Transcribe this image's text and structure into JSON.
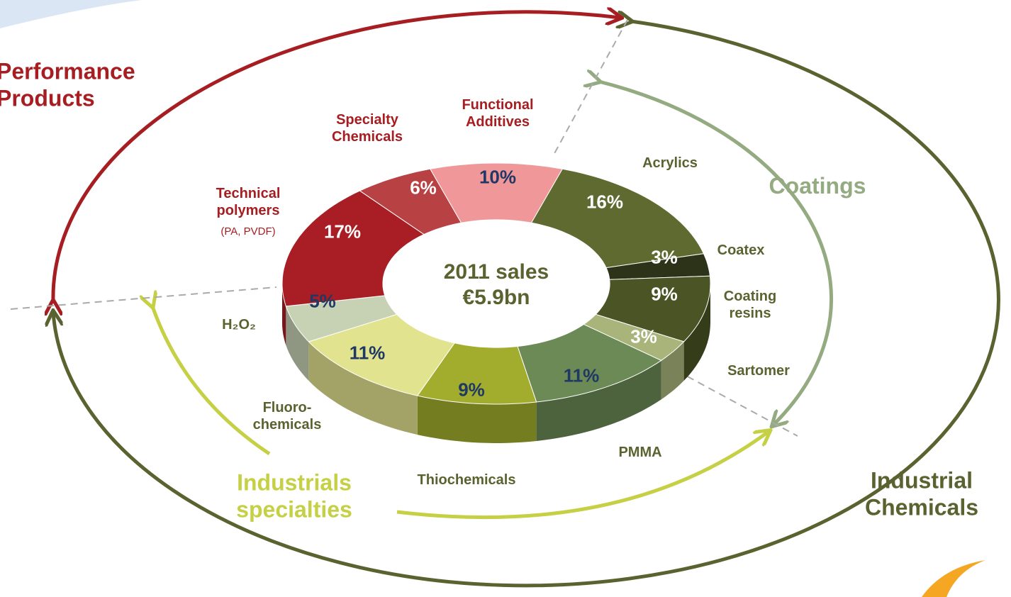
{
  "chart_data": {
    "type": "pie",
    "donut": true,
    "center_label": "2011 sales €5.9bn",
    "categories": [
      "Functional Additives",
      "Acrylics",
      "Coatex",
      "Coating resins",
      "Sartomer",
      "PMMA",
      "Thiochemicals",
      "Fluoro-chemicals",
      "H₂O₂",
      "Technical polymers",
      "Specialty Chemicals"
    ],
    "values": [
      10,
      16,
      3,
      9,
      3,
      11,
      9,
      11,
      5,
      17,
      6
    ],
    "value_labels": [
      "10%",
      "16%",
      "3%",
      "9%",
      "3%",
      "11%",
      "9%",
      "11%",
      "5%",
      "17%",
      "6%"
    ],
    "colors": [
      "#f0979a",
      "#5e6a2f",
      "#2d3318",
      "#4a5424",
      "#a8b47a",
      "#6b8a55",
      "#a2ad2e",
      "#e2e38f",
      "#c7d2b5",
      "#a81e24",
      "#b84143"
    ],
    "value_label_colors": [
      "#1f3864",
      "#ffffff",
      "#ffffff",
      "#ffffff",
      "#ffffff",
      "#1f3864",
      "#1f3864",
      "#1f3864",
      "#1f3864",
      "#ffffff",
      "#ffffff"
    ],
    "category_label_colors": [
      "#a61e22",
      "#5a6330",
      "#5a6330",
      "#5a6330",
      "#5a6330",
      "#5a6330",
      "#5a6330",
      "#5a6330",
      "#5a6330",
      "#a61e22",
      "#a61e22"
    ],
    "annotations": [
      {
        "text": "(PA, PVDF)",
        "color": "#a61e22"
      }
    ],
    "groups": [
      {
        "name": "Performance Products",
        "color": "#a61e22"
      },
      {
        "name": "Coatings",
        "color": "#94aa80"
      },
      {
        "name": "Industrial Chemicals",
        "color": "#5a6330"
      },
      {
        "name": "Industrials specialties",
        "color": "#c5d045"
      }
    ]
  }
}
